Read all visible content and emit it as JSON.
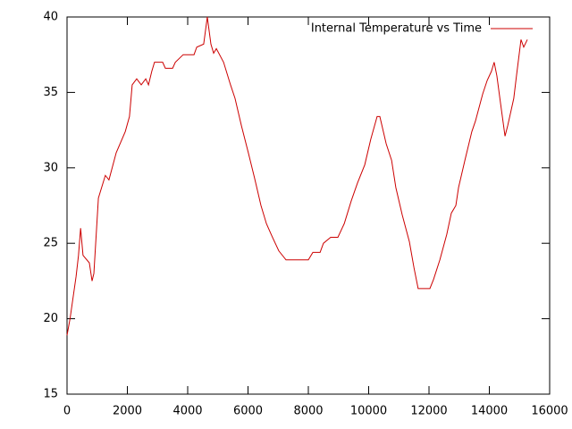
{
  "chart_data": {
    "type": "line",
    "x": [
      0,
      100,
      300,
      380,
      450,
      530,
      740,
      830,
      890,
      1040,
      1270,
      1390,
      1630,
      1930,
      2070,
      2160,
      2310,
      2460,
      2610,
      2700,
      2810,
      2900,
      3170,
      3260,
      3500,
      3590,
      3850,
      4210,
      4300,
      4530,
      4650,
      4770,
      4860,
      4950,
      5190,
      5420,
      5570,
      5780,
      6010,
      6220,
      6430,
      6610,
      6810,
      7020,
      7260,
      8000,
      8150,
      8390,
      8500,
      8740,
      8980,
      9190,
      9420,
      9630,
      9870,
      10070,
      10280,
      10370,
      10580,
      10760,
      10900,
      11110,
      11350,
      11500,
      11640,
      12030,
      12150,
      12360,
      12590,
      12740,
      12890,
      12980,
      13190,
      13420,
      13540,
      13780,
      13930,
      14070,
      14160,
      14250,
      14370,
      14520,
      14610,
      14810,
      14900,
      15050,
      15140,
      15260
    ],
    "series": [
      {
        "name": "Internal Temperature vs Time",
        "color": "#cc0000",
        "values": [
          18.9,
          20,
          22.8,
          24.2,
          26,
          24.2,
          23.7,
          22.5,
          23,
          28,
          29.5,
          29.2,
          31,
          32.4,
          33.4,
          35.5,
          35.9,
          35.5,
          35.9,
          35.5,
          36.4,
          37,
          37,
          36.6,
          36.6,
          37,
          37.5,
          37.5,
          38,
          38.2,
          40,
          38.2,
          37.6,
          37.9,
          37,
          35.5,
          34.6,
          32.8,
          31,
          29.3,
          27.5,
          26.3,
          25.4,
          24.5,
          23.9,
          23.9,
          24.4,
          24.4,
          25,
          25.4,
          25.4,
          26.3,
          27.8,
          29,
          30.2,
          31.9,
          33.4,
          33.4,
          31.6,
          30.5,
          28.7,
          26.9,
          25.1,
          23.4,
          22,
          22,
          22.6,
          23.9,
          25.6,
          27,
          27.5,
          28.7,
          30.5,
          32.4,
          33.1,
          34.9,
          35.8,
          36.4,
          37,
          36.1,
          34.3,
          32.1,
          32.8,
          34.6,
          36.1,
          38.5,
          38,
          38.5
        ]
      }
    ],
    "xlim": [
      0,
      16000
    ],
    "xticks": [
      0,
      2000,
      4000,
      6000,
      8000,
      10000,
      12000,
      14000,
      16000
    ],
    "ylim": [
      15,
      40
    ],
    "yticks": [
      15,
      20,
      25,
      30,
      35,
      40
    ],
    "legend": "top-right"
  }
}
